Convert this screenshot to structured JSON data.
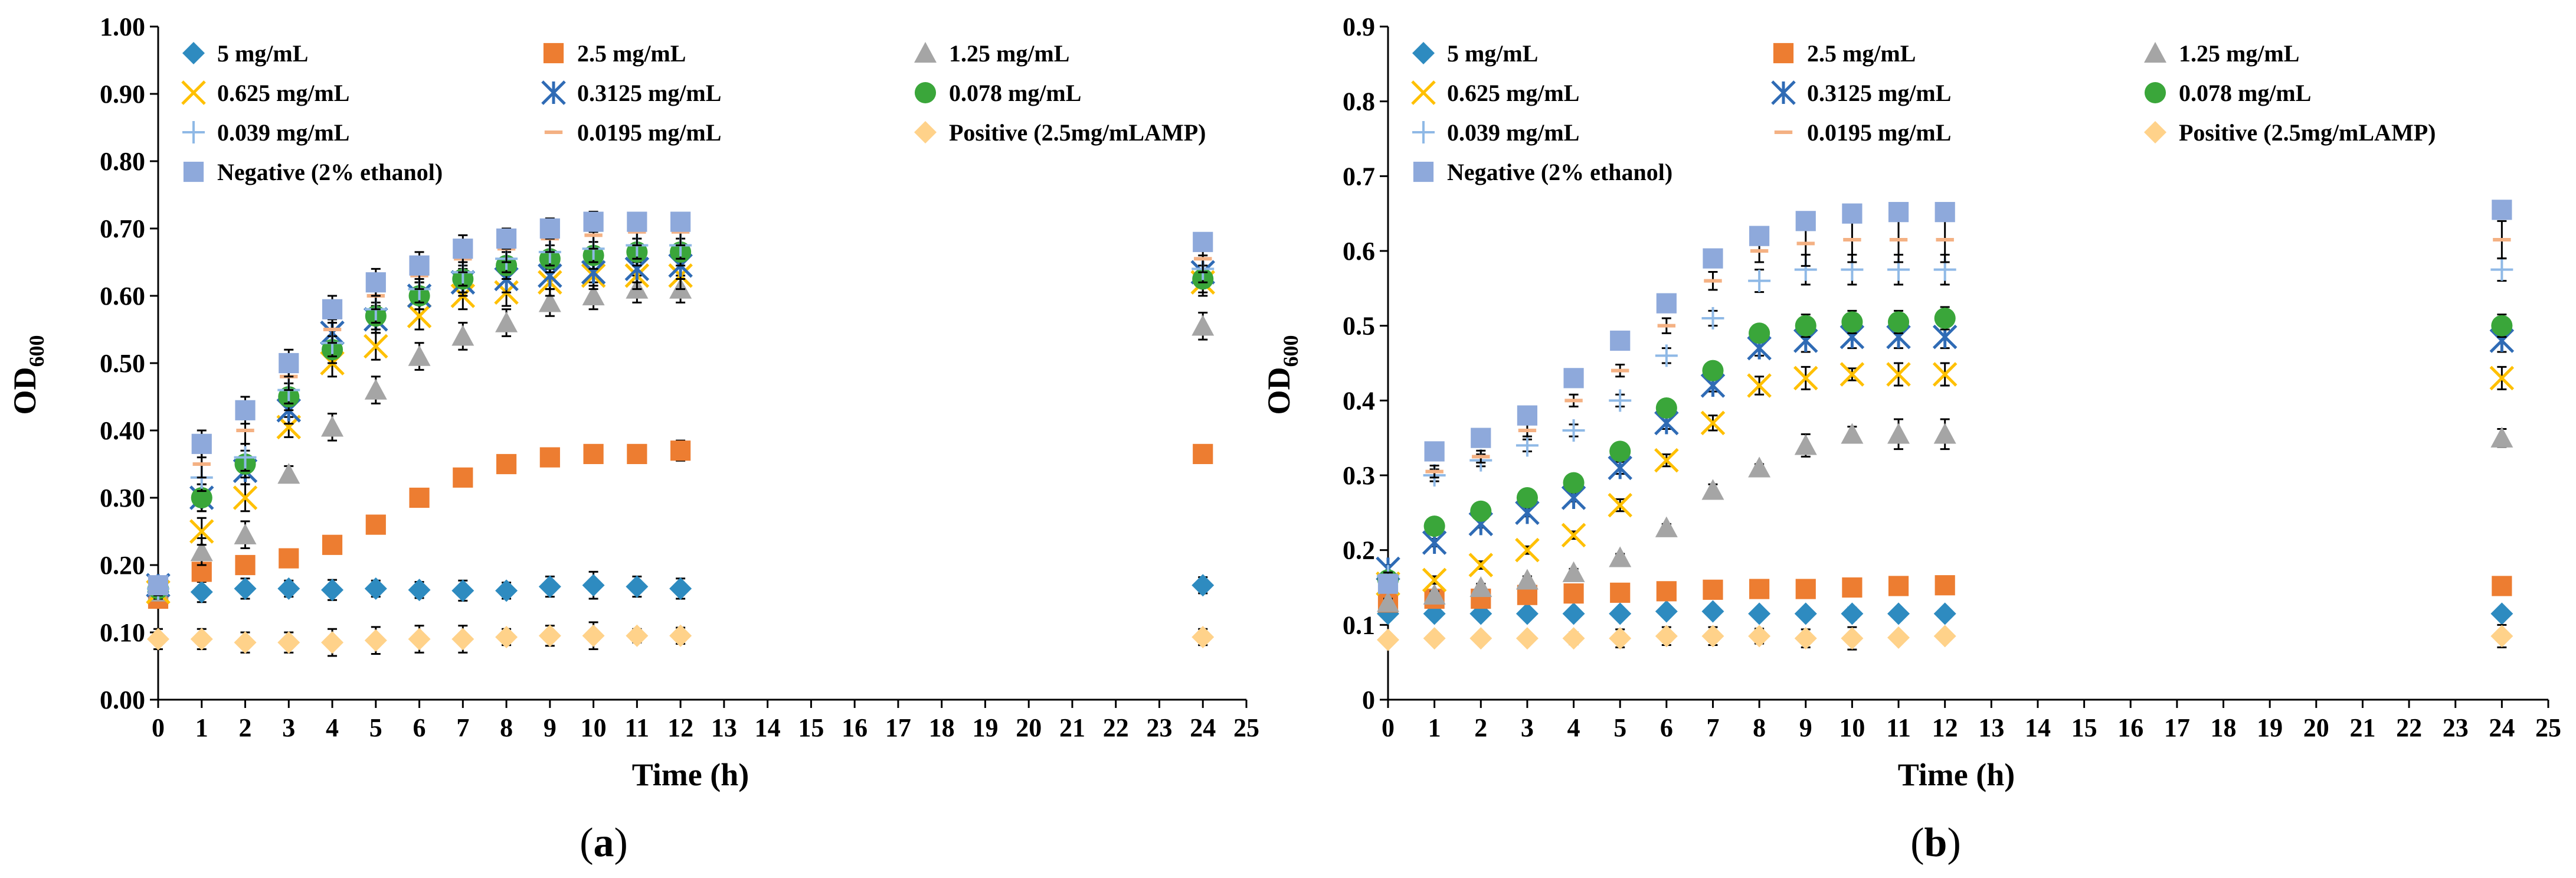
{
  "figure": {
    "panels": [
      {
        "label_open": "(",
        "label_letter": "a",
        "label_close": ")"
      },
      {
        "label_open": "(",
        "label_letter": "b",
        "label_close": ")"
      }
    ]
  },
  "chart_data": [
    {
      "type": "scatter",
      "title": "",
      "xlabel": "Time (h)",
      "ylabel_main": "OD",
      "ylabel_sub": "600",
      "xlim": [
        0,
        25
      ],
      "ylim": [
        0,
        1
      ],
      "xticks": [
        "0",
        "1",
        "2",
        "3",
        "4",
        "5",
        "6",
        "7",
        "8",
        "9",
        "10",
        "11",
        "12",
        "13",
        "14",
        "15",
        "16",
        "17",
        "18",
        "19",
        "20",
        "21",
        "22",
        "23",
        "24",
        "25"
      ],
      "yticks": [
        "0.00",
        "0.10",
        "0.20",
        "0.30",
        "0.40",
        "0.50",
        "0.60",
        "0.70",
        "0.80",
        "0.90",
        "1.00"
      ],
      "grid": false,
      "legend_position": "top",
      "x": [
        0,
        1,
        2,
        3,
        4,
        5,
        6,
        7,
        8,
        9,
        10,
        11,
        12,
        24
      ],
      "series": [
        {
          "name": "5 mg/mL",
          "marker": "diamond",
          "color": "#2E8BC0",
          "values": [
            0.16,
            0.16,
            0.165,
            0.165,
            0.163,
            0.165,
            0.163,
            0.162,
            0.162,
            0.168,
            0.17,
            0.168,
            0.165,
            0.17
          ],
          "errors": [
            0.01,
            0.015,
            0.015,
            0.012,
            0.015,
            0.012,
            0.012,
            0.015,
            0.012,
            0.015,
            0.02,
            0.015,
            0.015,
            0.012
          ]
        },
        {
          "name": "2.5 mg/mL",
          "marker": "square",
          "color": "#ED7D31",
          "values": [
            0.15,
            0.19,
            0.2,
            0.21,
            0.23,
            0.26,
            0.3,
            0.33,
            0.35,
            0.36,
            0.365,
            0.365,
            0.37,
            0.365
          ],
          "errors": [
            0.01,
            0.01,
            0.01,
            0.008,
            0.008,
            0.008,
            0.008,
            0.012,
            0.012,
            0.01,
            0.01,
            0.012,
            0.015,
            0.012
          ]
        },
        {
          "name": "1.25 mg/mL",
          "marker": "triangle",
          "color": "#A5A5A5",
          "values": [
            0.16,
            0.22,
            0.245,
            0.335,
            0.405,
            0.46,
            0.51,
            0.54,
            0.56,
            0.59,
            0.6,
            0.61,
            0.61,
            0.555
          ],
          "errors": [
            0.01,
            0.02,
            0.02,
            0.012,
            0.02,
            0.02,
            0.02,
            0.02,
            0.02,
            0.02,
            0.02,
            0.02,
            0.02,
            0.02
          ]
        },
        {
          "name": "0.625 mg/mL",
          "marker": "x",
          "color": "#FFC000",
          "values": [
            0.16,
            0.25,
            0.3,
            0.405,
            0.5,
            0.525,
            0.57,
            0.6,
            0.605,
            0.62,
            0.63,
            0.63,
            0.63,
            0.62
          ],
          "errors": [
            0.01,
            0.02,
            0.02,
            0.015,
            0.02,
            0.02,
            0.02,
            0.02,
            0.02,
            0.02,
            0.02,
            0.02,
            0.02,
            0.02
          ]
        },
        {
          "name": "0.3125 mg/mL",
          "marker": "star",
          "color": "#2F6BB5",
          "values": [
            0.17,
            0.3,
            0.34,
            0.43,
            0.545,
            0.565,
            0.6,
            0.62,
            0.625,
            0.63,
            0.635,
            0.64,
            0.645,
            0.635
          ],
          "errors": [
            0.01,
            0.02,
            0.02,
            0.02,
            0.02,
            0.02,
            0.02,
            0.02,
            0.02,
            0.02,
            0.02,
            0.02,
            0.02,
            0.02
          ]
        },
        {
          "name": "0.078 mg/mL",
          "marker": "circle",
          "color": "#3AA63A",
          "values": [
            0.165,
            0.3,
            0.35,
            0.45,
            0.52,
            0.57,
            0.6,
            0.625,
            0.645,
            0.655,
            0.66,
            0.665,
            0.665,
            0.625
          ],
          "errors": [
            0.01,
            0.02,
            0.02,
            0.02,
            0.02,
            0.02,
            0.02,
            0.02,
            0.02,
            0.02,
            0.02,
            0.02,
            0.02,
            0.02
          ]
        },
        {
          "name": "0.039 mg/mL",
          "marker": "plus",
          "color": "#8FB9E6",
          "values": [
            0.165,
            0.33,
            0.36,
            0.46,
            0.53,
            0.58,
            0.61,
            0.635,
            0.655,
            0.665,
            0.67,
            0.675,
            0.675,
            0.64
          ],
          "errors": [
            0.01,
            0.02,
            0.02,
            0.02,
            0.02,
            0.02,
            0.02,
            0.02,
            0.02,
            0.02,
            0.02,
            0.02,
            0.02,
            0.02
          ]
        },
        {
          "name": "0.0195 mg/mL",
          "marker": "dash",
          "color": "#F4B183",
          "values": [
            0.165,
            0.35,
            0.4,
            0.48,
            0.55,
            0.6,
            0.63,
            0.655,
            0.67,
            0.685,
            0.69,
            0.695,
            0.695,
            0.655
          ],
          "errors": [
            0.01,
            0.02,
            0.02,
            0.02,
            0.02,
            0.02,
            0.02,
            0.02,
            0.02,
            0.02,
            0.02,
            0.02,
            0.02,
            0.02
          ]
        },
        {
          "name": "Positive (2.5mg/mLAMP)",
          "marker": "diamond",
          "color": "#FFD28A",
          "values": [
            0.09,
            0.09,
            0.085,
            0.085,
            0.085,
            0.088,
            0.09,
            0.09,
            0.093,
            0.095,
            0.095,
            0.095,
            0.095,
            0.093
          ],
          "errors": [
            0.015,
            0.015,
            0.015,
            0.015,
            0.02,
            0.02,
            0.02,
            0.02,
            0.012,
            0.015,
            0.02,
            0.01,
            0.012,
            0.012
          ]
        },
        {
          "name": "Negative (2% ethanol)",
          "marker": "square",
          "color": "#8EA9DB",
          "values": [
            0.17,
            0.38,
            0.43,
            0.5,
            0.58,
            0.62,
            0.645,
            0.67,
            0.685,
            0.7,
            0.71,
            0.71,
            0.71,
            0.68
          ],
          "errors": [
            0.01,
            0.02,
            0.02,
            0.02,
            0.02,
            0.02,
            0.02,
            0.02,
            0.015,
            0.015,
            0.015,
            0.012,
            0.012,
            0.012
          ]
        }
      ]
    },
    {
      "type": "scatter",
      "title": "",
      "xlabel": "Time (h)",
      "ylabel_main": "OD",
      "ylabel_sub": "600",
      "xlim": [
        0,
        25
      ],
      "ylim": [
        0,
        0.9
      ],
      "xticks": [
        "0",
        "1",
        "2",
        "3",
        "4",
        "5",
        "6",
        "7",
        "8",
        "9",
        "10",
        "11",
        "12",
        "13",
        "14",
        "15",
        "16",
        "17",
        "18",
        "19",
        "20",
        "21",
        "22",
        "23",
        "24",
        "25"
      ],
      "yticks": [
        "0",
        "0.1",
        "0.2",
        "0.3",
        "0.4",
        "0.5",
        "0.6",
        "0.7",
        "0.8",
        "0.9"
      ],
      "grid": false,
      "legend_position": "top",
      "x": [
        0,
        1,
        2,
        3,
        4,
        5,
        6,
        7,
        8,
        9,
        10,
        11,
        12,
        24
      ],
      "series": [
        {
          "name": "5 mg/mL",
          "marker": "diamond",
          "color": "#2E8BC0",
          "values": [
            0.115,
            0.115,
            0.115,
            0.115,
            0.115,
            0.115,
            0.118,
            0.118,
            0.115,
            0.115,
            0.115,
            0.115,
            0.115,
            0.115
          ],
          "errors": [
            0.005,
            0.005,
            0.005,
            0.005,
            0.005,
            0.005,
            0.005,
            0.005,
            0.005,
            0.005,
            0.008,
            0.005,
            0.005,
            0.005
          ]
        },
        {
          "name": "2.5 mg/mL",
          "marker": "square",
          "color": "#ED7D31",
          "values": [
            0.13,
            0.135,
            0.135,
            0.14,
            0.142,
            0.143,
            0.145,
            0.147,
            0.148,
            0.148,
            0.15,
            0.152,
            0.153,
            0.152
          ],
          "errors": [
            0.005,
            0.005,
            0.005,
            0.005,
            0.005,
            0.005,
            0.005,
            0.005,
            0.005,
            0.005,
            0.005,
            0.005,
            0.005,
            0.005
          ]
        },
        {
          "name": "1.25 mg/mL",
          "marker": "triangle",
          "color": "#A5A5A5",
          "values": [
            0.13,
            0.14,
            0.15,
            0.16,
            0.17,
            0.19,
            0.23,
            0.28,
            0.31,
            0.34,
            0.355,
            0.355,
            0.355,
            0.35
          ],
          "errors": [
            0.005,
            0.005,
            0.005,
            0.005,
            0.005,
            0.005,
            0.005,
            0.008,
            0.005,
            0.015,
            0.01,
            0.02,
            0.02,
            0.012
          ]
        },
        {
          "name": "0.625 mg/mL",
          "marker": "x",
          "color": "#FFC000",
          "values": [
            0.155,
            0.16,
            0.18,
            0.2,
            0.22,
            0.26,
            0.32,
            0.37,
            0.42,
            0.43,
            0.435,
            0.435,
            0.435,
            0.43
          ],
          "errors": [
            0.005,
            0.005,
            0.005,
            0.005,
            0.005,
            0.008,
            0.008,
            0.01,
            0.012,
            0.015,
            0.008,
            0.015,
            0.015,
            0.015
          ]
        },
        {
          "name": "0.3125 mg/mL",
          "marker": "star",
          "color": "#2F6BB5",
          "values": [
            0.175,
            0.21,
            0.235,
            0.25,
            0.27,
            0.31,
            0.37,
            0.42,
            0.47,
            0.48,
            0.485,
            0.485,
            0.485,
            0.48
          ],
          "errors": [
            0.005,
            0.005,
            0.005,
            0.005,
            0.005,
            0.008,
            0.008,
            0.008,
            0.01,
            0.015,
            0.015,
            0.015,
            0.015,
            0.015
          ]
        },
        {
          "name": "0.078 mg/mL",
          "marker": "circle",
          "color": "#3AA63A",
          "values": [
            0.16,
            0.232,
            0.252,
            0.27,
            0.29,
            0.332,
            0.39,
            0.44,
            0.49,
            0.5,
            0.505,
            0.505,
            0.51,
            0.5
          ],
          "errors": [
            0.005,
            0.005,
            0.005,
            0.005,
            0.005,
            0.005,
            0.005,
            0.005,
            0.01,
            0.015,
            0.015,
            0.015,
            0.015,
            0.015
          ]
        },
        {
          "name": "0.039 mg/mL",
          "marker": "plus",
          "color": "#8FB9E6",
          "values": [
            0.165,
            0.3,
            0.32,
            0.34,
            0.36,
            0.4,
            0.46,
            0.51,
            0.56,
            0.575,
            0.575,
            0.575,
            0.575,
            0.575
          ],
          "errors": [
            0.005,
            0.008,
            0.008,
            0.008,
            0.008,
            0.008,
            0.01,
            0.01,
            0.015,
            0.02,
            0.02,
            0.02,
            0.02,
            0.015
          ]
        },
        {
          "name": "0.0195 mg/mL",
          "marker": "dash",
          "color": "#F4B183",
          "values": [
            0.165,
            0.305,
            0.325,
            0.36,
            0.4,
            0.44,
            0.5,
            0.56,
            0.6,
            0.61,
            0.615,
            0.615,
            0.615,
            0.615
          ],
          "errors": [
            0.005,
            0.008,
            0.008,
            0.008,
            0.008,
            0.008,
            0.01,
            0.012,
            0.015,
            0.03,
            0.03,
            0.03,
            0.03,
            0.025
          ]
        },
        {
          "name": "Positive (2.5mg/mLAMP)",
          "marker": "diamond",
          "color": "#FFD28A",
          "values": [
            0.08,
            0.082,
            0.082,
            0.082,
            0.082,
            0.082,
            0.085,
            0.085,
            0.085,
            0.082,
            0.082,
            0.083,
            0.085,
            0.085
          ],
          "errors": [
            0.005,
            0.005,
            0.005,
            0.005,
            0.008,
            0.012,
            0.012,
            0.012,
            0.01,
            0.012,
            0.015,
            0.005,
            0.005,
            0.015
          ]
        },
        {
          "name": "Negative (2% ethanol)",
          "marker": "square",
          "color": "#8EA9DB",
          "values": [
            0.155,
            0.332,
            0.35,
            0.38,
            0.43,
            0.48,
            0.53,
            0.59,
            0.62,
            0.64,
            0.65,
            0.652,
            0.652,
            0.655
          ],
          "errors": [
            0.005,
            0.005,
            0.005,
            0.005,
            0.005,
            0.005,
            0.005,
            0.005,
            0.005,
            0.005,
            0.01,
            0.005,
            0.005,
            0.005
          ]
        }
      ]
    }
  ]
}
